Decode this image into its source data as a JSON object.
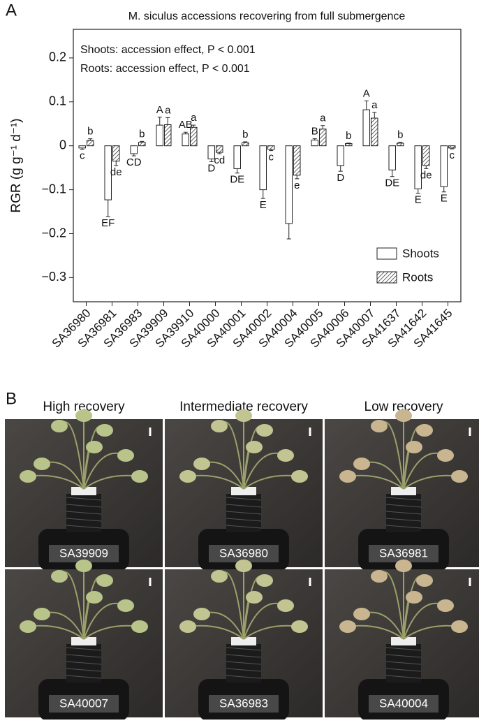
{
  "chart_data": {
    "type": "bar",
    "panel_label": "A",
    "title": "M. siculus accessions recovering from full submergence",
    "y_label": "RGR (g g⁻¹ d⁻¹)",
    "annotations": [
      "Shoots: accession effect, P < 0.001",
      "Roots: accession effect, P < 0.001"
    ],
    "categories": [
      "SA36980",
      "SA36981",
      "SA36983",
      "SA39909",
      "SA39910",
      "SA40000",
      "SA40001",
      "SA40002",
      "SA40004",
      "SA40005",
      "SA40006",
      "SA40007",
      "SA41637",
      "SA41642",
      "SA41645"
    ],
    "series": [
      {
        "name": "Shoots",
        "color": "#ffffff",
        "hatch": false,
        "values": [
          -0.005,
          -0.123,
          -0.018,
          0.047,
          0.027,
          -0.03,
          -0.052,
          -0.1,
          -0.177,
          0.013,
          -0.045,
          0.082,
          -0.055,
          -0.098,
          -0.093
        ],
        "errors": [
          0.003,
          0.038,
          0.005,
          0.018,
          0.004,
          0.006,
          0.01,
          0.02,
          0.035,
          0.003,
          0.013,
          0.02,
          0.015,
          0.01,
          0.012
        ],
        "letters": [
          "c",
          "EF",
          "CD",
          "A",
          "AB",
          "D",
          "DE",
          "E",
          null,
          "B",
          "D",
          "A",
          "DE",
          "E",
          "E"
        ]
      },
      {
        "name": "Roots",
        "color": "#ffffff",
        "hatch": true,
        "values": [
          0.012,
          -0.035,
          0.008,
          0.048,
          0.042,
          -0.015,
          0.007,
          -0.008,
          -0.067,
          0.038,
          0.005,
          0.063,
          0.006,
          -0.045,
          -0.005
        ],
        "errors": [
          0.004,
          0.01,
          0.002,
          0.016,
          0.005,
          0.003,
          0.002,
          0.003,
          0.008,
          0.008,
          0.001,
          0.013,
          0.002,
          0.007,
          0.002
        ],
        "letters": [
          "b",
          "de",
          "b",
          "a",
          "a",
          "cd",
          "b",
          "c",
          "e",
          "a",
          "b",
          "a",
          "b",
          "de",
          "c"
        ]
      }
    ],
    "ylim": [
      -0.355,
      0.265
    ],
    "yticks": [
      {
        "value": -0.3,
        "label": "−0.3"
      },
      {
        "value": -0.2,
        "label": "−0.2"
      },
      {
        "value": -0.1,
        "label": "−0.1"
      },
      0,
      0.1,
      0.2
    ],
    "legend": "lower right",
    "grid": false
  },
  "photos": {
    "panel_label": "B",
    "columns": [
      "High recovery",
      "Intermediate recovery",
      "Low recovery"
    ],
    "rows": [
      [
        "SA39909",
        "SA36980",
        "SA36981"
      ],
      [
        "SA40007",
        "SA36983",
        "SA40004"
      ]
    ]
  }
}
